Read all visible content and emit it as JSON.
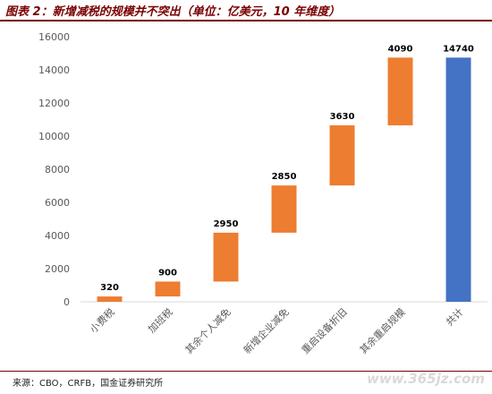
{
  "figure": {
    "title": "图表 2：新增减税的规模并不突出（单位：亿美元，10 年维度）",
    "source": "来源：CBO，CRFB，国金证券研究所",
    "watermark": "www.365jz.com"
  },
  "colors": {
    "increase": "#ED7D31",
    "total": "#4472C4",
    "axis": "#d9d9d9",
    "tick_text": "#595959",
    "figure_accent": "#7a0000"
  },
  "chart_data": {
    "type": "bar",
    "subtype": "waterfall",
    "title": "",
    "xlabel": "",
    "ylabel": "",
    "ylim": [
      0,
      16000
    ],
    "yticks": [
      0,
      2000,
      4000,
      6000,
      8000,
      10000,
      12000,
      14000,
      16000
    ],
    "grid": false,
    "legend": "none",
    "categories": [
      "小费税",
      "加班税",
      "其余个人减免",
      "新增企业减免",
      "重启设备折旧",
      "其余重启规模",
      "共计"
    ],
    "values": [
      320,
      900,
      2950,
      2850,
      3630,
      4090,
      14740
    ],
    "bar_kinds": [
      "increase",
      "increase",
      "increase",
      "increase",
      "increase",
      "increase",
      "total"
    ],
    "data_labels": [
      "320",
      "900",
      "2950",
      "2850",
      "3630",
      "4090",
      "14740"
    ]
  }
}
